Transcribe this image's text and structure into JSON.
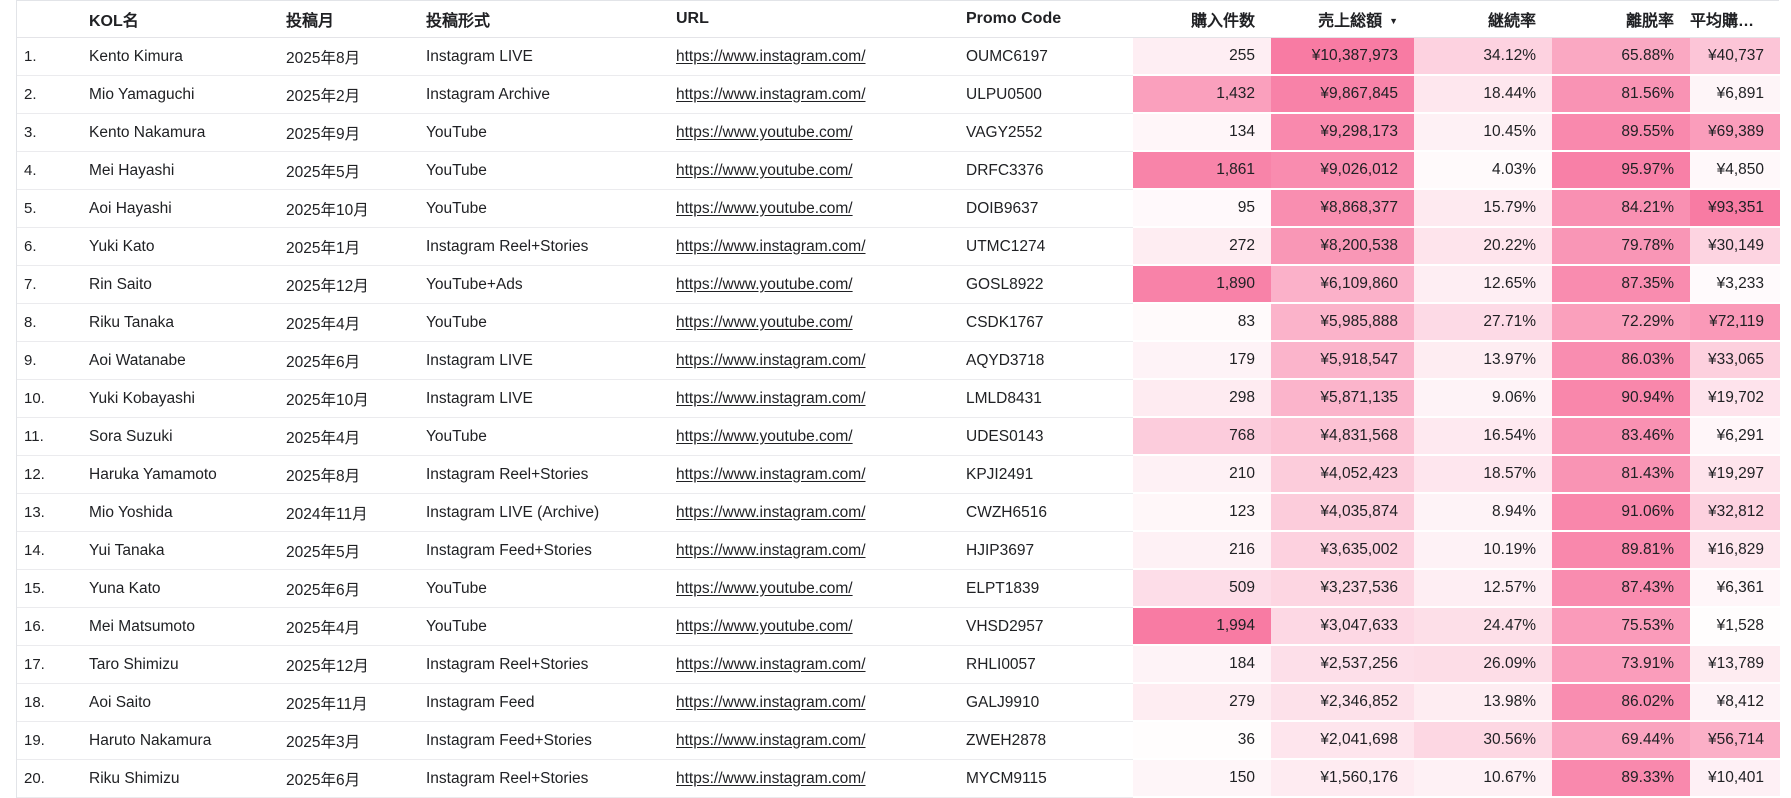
{
  "colors": {
    "heat_max": "#f87ba3",
    "text": "#202124",
    "hairline": "#ebebee",
    "link": "#202124"
  },
  "icons": {
    "sort_desc": "▼"
  },
  "table": {
    "sort": {
      "column": "sales_total",
      "direction": "desc"
    },
    "columns": [
      {
        "id": "index",
        "label": "",
        "align": "left",
        "type": "text"
      },
      {
        "id": "name",
        "label": "KOL名",
        "align": "left",
        "type": "text"
      },
      {
        "id": "month",
        "label": "投稿月",
        "align": "left",
        "type": "text"
      },
      {
        "id": "format",
        "label": "投稿形式",
        "align": "left",
        "type": "text"
      },
      {
        "id": "url",
        "label": "URL",
        "align": "left",
        "type": "link"
      },
      {
        "id": "promo_code",
        "label": "Promo Code",
        "align": "left",
        "type": "text"
      },
      {
        "id": "purchases",
        "label": "購入件数",
        "align": "right",
        "type": "heat",
        "scale_max": 1994
      },
      {
        "id": "sales_total",
        "label": "売上総額",
        "align": "right",
        "type": "heat",
        "scale_max": 10387973,
        "sorted": "desc"
      },
      {
        "id": "retention_rate",
        "label": "継続率",
        "align": "right",
        "type": "heat",
        "scale_max": 100
      },
      {
        "id": "churn_rate",
        "label": "離脱率",
        "align": "right",
        "type": "heat",
        "scale_max": 100
      },
      {
        "id": "avg_purchase",
        "label": "平均購入...",
        "align": "right",
        "type": "heat",
        "scale_max": 93351
      }
    ],
    "rows": [
      {
        "index": "1.",
        "name": "Kento Kimura",
        "month": "2025年8月",
        "format": "Instagram LIVE",
        "url": "https://www.instagram.com/",
        "promo_code": "OUMC6197",
        "purchases": {
          "text": "255",
          "value": 255
        },
        "sales_total": {
          "text": "¥10,387,973",
          "value": 10387973
        },
        "retention_rate": {
          "text": "34.12%",
          "value": 34.12
        },
        "churn_rate": {
          "text": "65.88%",
          "value": 65.88
        },
        "avg_purchase": {
          "text": "¥40,737",
          "value": 40737
        }
      },
      {
        "index": "2.",
        "name": "Mio Yamaguchi",
        "month": "2025年2月",
        "format": "Instagram Archive",
        "url": "https://www.instagram.com/",
        "promo_code": "ULPU0500",
        "purchases": {
          "text": "1,432",
          "value": 1432
        },
        "sales_total": {
          "text": "¥9,867,845",
          "value": 9867845
        },
        "retention_rate": {
          "text": "18.44%",
          "value": 18.44
        },
        "churn_rate": {
          "text": "81.56%",
          "value": 81.56
        },
        "avg_purchase": {
          "text": "¥6,891",
          "value": 6891
        }
      },
      {
        "index": "3.",
        "name": "Kento Nakamura",
        "month": "2025年9月",
        "format": "YouTube",
        "url": "https://www.youtube.com/",
        "promo_code": "VAGY2552",
        "purchases": {
          "text": "134",
          "value": 134
        },
        "sales_total": {
          "text": "¥9,298,173",
          "value": 9298173
        },
        "retention_rate": {
          "text": "10.45%",
          "value": 10.45
        },
        "churn_rate": {
          "text": "89.55%",
          "value": 89.55
        },
        "avg_purchase": {
          "text": "¥69,389",
          "value": 69389
        }
      },
      {
        "index": "4.",
        "name": "Mei Hayashi",
        "month": "2025年5月",
        "format": "YouTube",
        "url": "https://www.youtube.com/",
        "promo_code": "DRFC3376",
        "purchases": {
          "text": "1,861",
          "value": 1861
        },
        "sales_total": {
          "text": "¥9,026,012",
          "value": 9026012
        },
        "retention_rate": {
          "text": "4.03%",
          "value": 4.03
        },
        "churn_rate": {
          "text": "95.97%",
          "value": 95.97
        },
        "avg_purchase": {
          "text": "¥4,850",
          "value": 4850
        }
      },
      {
        "index": "5.",
        "name": "Aoi Hayashi",
        "month": "2025年10月",
        "format": "YouTube",
        "url": "https://www.youtube.com/",
        "promo_code": "DOIB9637",
        "purchases": {
          "text": "95",
          "value": 95
        },
        "sales_total": {
          "text": "¥8,868,377",
          "value": 8868377
        },
        "retention_rate": {
          "text": "15.79%",
          "value": 15.79
        },
        "churn_rate": {
          "text": "84.21%",
          "value": 84.21
        },
        "avg_purchase": {
          "text": "¥93,351",
          "value": 93351
        }
      },
      {
        "index": "6.",
        "name": "Yuki Kato",
        "month": "2025年1月",
        "format": "Instagram Reel+Stories",
        "url": "https://www.instagram.com/",
        "promo_code": "UTMC1274",
        "purchases": {
          "text": "272",
          "value": 272
        },
        "sales_total": {
          "text": "¥8,200,538",
          "value": 8200538
        },
        "retention_rate": {
          "text": "20.22%",
          "value": 20.22
        },
        "churn_rate": {
          "text": "79.78%",
          "value": 79.78
        },
        "avg_purchase": {
          "text": "¥30,149",
          "value": 30149
        }
      },
      {
        "index": "7.",
        "name": "Rin Saito",
        "month": "2025年12月",
        "format": "YouTube+Ads",
        "url": "https://www.youtube.com/",
        "promo_code": "GOSL8922",
        "purchases": {
          "text": "1,890",
          "value": 1890
        },
        "sales_total": {
          "text": "¥6,109,860",
          "value": 6109860
        },
        "retention_rate": {
          "text": "12.65%",
          "value": 12.65
        },
        "churn_rate": {
          "text": "87.35%",
          "value": 87.35
        },
        "avg_purchase": {
          "text": "¥3,233",
          "value": 3233
        }
      },
      {
        "index": "8.",
        "name": "Riku Tanaka",
        "month": "2025年4月",
        "format": "YouTube",
        "url": "https://www.youtube.com/",
        "promo_code": "CSDK1767",
        "purchases": {
          "text": "83",
          "value": 83
        },
        "sales_total": {
          "text": "¥5,985,888",
          "value": 5985888
        },
        "retention_rate": {
          "text": "27.71%",
          "value": 27.71
        },
        "churn_rate": {
          "text": "72.29%",
          "value": 72.29
        },
        "avg_purchase": {
          "text": "¥72,119",
          "value": 72119
        }
      },
      {
        "index": "9.",
        "name": "Aoi Watanabe",
        "month": "2025年6月",
        "format": "Instagram LIVE",
        "url": "https://www.instagram.com/",
        "promo_code": "AQYD3718",
        "purchases": {
          "text": "179",
          "value": 179
        },
        "sales_total": {
          "text": "¥5,918,547",
          "value": 5918547
        },
        "retention_rate": {
          "text": "13.97%",
          "value": 13.97
        },
        "churn_rate": {
          "text": "86.03%",
          "value": 86.03
        },
        "avg_purchase": {
          "text": "¥33,065",
          "value": 33065
        }
      },
      {
        "index": "10.",
        "name": "Yuki Kobayashi",
        "month": "2025年10月",
        "format": "Instagram LIVE",
        "url": "https://www.instagram.com/",
        "promo_code": "LMLD8431",
        "purchases": {
          "text": "298",
          "value": 298
        },
        "sales_total": {
          "text": "¥5,871,135",
          "value": 5871135
        },
        "retention_rate": {
          "text": "9.06%",
          "value": 9.06
        },
        "churn_rate": {
          "text": "90.94%",
          "value": 90.94
        },
        "avg_purchase": {
          "text": "¥19,702",
          "value": 19702
        }
      },
      {
        "index": "11.",
        "name": "Sora Suzuki",
        "month": "2025年4月",
        "format": "YouTube",
        "url": "https://www.youtube.com/",
        "promo_code": "UDES0143",
        "purchases": {
          "text": "768",
          "value": 768
        },
        "sales_total": {
          "text": "¥4,831,568",
          "value": 4831568
        },
        "retention_rate": {
          "text": "16.54%",
          "value": 16.54
        },
        "churn_rate": {
          "text": "83.46%",
          "value": 83.46
        },
        "avg_purchase": {
          "text": "¥6,291",
          "value": 6291
        }
      },
      {
        "index": "12.",
        "name": "Haruka Yamamoto",
        "month": "2025年8月",
        "format": "Instagram Reel+Stories",
        "url": "https://www.instagram.com/",
        "promo_code": "KPJI2491",
        "purchases": {
          "text": "210",
          "value": 210
        },
        "sales_total": {
          "text": "¥4,052,423",
          "value": 4052423
        },
        "retention_rate": {
          "text": "18.57%",
          "value": 18.57
        },
        "churn_rate": {
          "text": "81.43%",
          "value": 81.43
        },
        "avg_purchase": {
          "text": "¥19,297",
          "value": 19297
        }
      },
      {
        "index": "13.",
        "name": "Mio Yoshida",
        "month": "2024年11月",
        "format": "Instagram LIVE (Archive)",
        "url": "https://www.instagram.com/",
        "promo_code": "CWZH6516",
        "purchases": {
          "text": "123",
          "value": 123
        },
        "sales_total": {
          "text": "¥4,035,874",
          "value": 4035874
        },
        "retention_rate": {
          "text": "8.94%",
          "value": 8.94
        },
        "churn_rate": {
          "text": "91.06%",
          "value": 91.06
        },
        "avg_purchase": {
          "text": "¥32,812",
          "value": 32812
        }
      },
      {
        "index": "14.",
        "name": "Yui Tanaka",
        "month": "2025年5月",
        "format": "Instagram Feed+Stories",
        "url": "https://www.instagram.com/",
        "promo_code": "HJIP3697",
        "purchases": {
          "text": "216",
          "value": 216
        },
        "sales_total": {
          "text": "¥3,635,002",
          "value": 3635002
        },
        "retention_rate": {
          "text": "10.19%",
          "value": 10.19
        },
        "churn_rate": {
          "text": "89.81%",
          "value": 89.81
        },
        "avg_purchase": {
          "text": "¥16,829",
          "value": 16829
        }
      },
      {
        "index": "15.",
        "name": "Yuna Kato",
        "month": "2025年6月",
        "format": "YouTube",
        "url": "https://www.youtube.com/",
        "promo_code": "ELPT1839",
        "purchases": {
          "text": "509",
          "value": 509
        },
        "sales_total": {
          "text": "¥3,237,536",
          "value": 3237536
        },
        "retention_rate": {
          "text": "12.57%",
          "value": 12.57
        },
        "churn_rate": {
          "text": "87.43%",
          "value": 87.43
        },
        "avg_purchase": {
          "text": "¥6,361",
          "value": 6361
        }
      },
      {
        "index": "16.",
        "name": "Mei Matsumoto",
        "month": "2025年4月",
        "format": "YouTube",
        "url": "https://www.youtube.com/",
        "promo_code": "VHSD2957",
        "purchases": {
          "text": "1,994",
          "value": 1994
        },
        "sales_total": {
          "text": "¥3,047,633",
          "value": 3047633
        },
        "retention_rate": {
          "text": "24.47%",
          "value": 24.47
        },
        "churn_rate": {
          "text": "75.53%",
          "value": 75.53
        },
        "avg_purchase": {
          "text": "¥1,528",
          "value": 1528
        }
      },
      {
        "index": "17.",
        "name": "Taro Shimizu",
        "month": "2025年12月",
        "format": "Instagram Reel+Stories",
        "url": "https://www.instagram.com/",
        "promo_code": "RHLI0057",
        "purchases": {
          "text": "184",
          "value": 184
        },
        "sales_total": {
          "text": "¥2,537,256",
          "value": 2537256
        },
        "retention_rate": {
          "text": "26.09%",
          "value": 26.09
        },
        "churn_rate": {
          "text": "73.91%",
          "value": 73.91
        },
        "avg_purchase": {
          "text": "¥13,789",
          "value": 13789
        }
      },
      {
        "index": "18.",
        "name": "Aoi Saito",
        "month": "2025年11月",
        "format": "Instagram Feed",
        "url": "https://www.instagram.com/",
        "promo_code": "GALJ9910",
        "purchases": {
          "text": "279",
          "value": 279
        },
        "sales_total": {
          "text": "¥2,346,852",
          "value": 2346852
        },
        "retention_rate": {
          "text": "13.98%",
          "value": 13.98
        },
        "churn_rate": {
          "text": "86.02%",
          "value": 86.02
        },
        "avg_purchase": {
          "text": "¥8,412",
          "value": 8412
        }
      },
      {
        "index": "19.",
        "name": "Haruto Nakamura",
        "month": "2025年3月",
        "format": "Instagram Feed+Stories",
        "url": "https://www.instagram.com/",
        "promo_code": "ZWEH2878",
        "purchases": {
          "text": "36",
          "value": 36
        },
        "sales_total": {
          "text": "¥2,041,698",
          "value": 2041698
        },
        "retention_rate": {
          "text": "30.56%",
          "value": 30.56
        },
        "churn_rate": {
          "text": "69.44%",
          "value": 69.44
        },
        "avg_purchase": {
          "text": "¥56,714",
          "value": 56714
        }
      },
      {
        "index": "20.",
        "name": "Riku Shimizu",
        "month": "2025年6月",
        "format": "Instagram Reel+Stories",
        "url": "https://www.instagram.com/",
        "promo_code": "MYCM9115",
        "purchases": {
          "text": "150",
          "value": 150
        },
        "sales_total": {
          "text": "¥1,560,176",
          "value": 1560176
        },
        "retention_rate": {
          "text": "10.67%",
          "value": 10.67
        },
        "churn_rate": {
          "text": "89.33%",
          "value": 89.33
        },
        "avg_purchase": {
          "text": "¥10,401",
          "value": 10401
        }
      }
    ]
  }
}
